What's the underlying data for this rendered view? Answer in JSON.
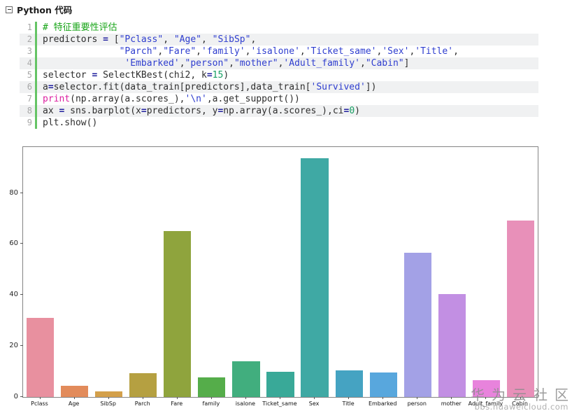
{
  "header": {
    "title": "Python 代码"
  },
  "code": {
    "lines": [
      {
        "no": "1",
        "tokens": [
          {
            "c": "comment",
            "t": "# 特征重要性评估"
          }
        ]
      },
      {
        "no": "2",
        "tokens": [
          {
            "c": "plain",
            "t": "predictors "
          },
          {
            "c": "op",
            "t": "="
          },
          {
            "c": "plain",
            "t": " ["
          },
          {
            "c": "str",
            "t": "\"Pclass\""
          },
          {
            "c": "plain",
            "t": ", "
          },
          {
            "c": "str",
            "t": "\"Age\""
          },
          {
            "c": "plain",
            "t": ", "
          },
          {
            "c": "str",
            "t": "\"SibSp\""
          },
          {
            "c": "plain",
            "t": ","
          }
        ]
      },
      {
        "no": "3",
        "tokens": [
          {
            "c": "plain",
            "t": "              "
          },
          {
            "c": "str",
            "t": "\"Parch\""
          },
          {
            "c": "plain",
            "t": ","
          },
          {
            "c": "str",
            "t": "\"Fare\""
          },
          {
            "c": "plain",
            "t": ","
          },
          {
            "c": "str",
            "t": "'family'"
          },
          {
            "c": "plain",
            "t": ","
          },
          {
            "c": "str",
            "t": "'isalone'"
          },
          {
            "c": "plain",
            "t": ","
          },
          {
            "c": "str",
            "t": "'Ticket_same'"
          },
          {
            "c": "plain",
            "t": ","
          },
          {
            "c": "str",
            "t": "'Sex'"
          },
          {
            "c": "plain",
            "t": ","
          },
          {
            "c": "str",
            "t": "'Title'"
          },
          {
            "c": "plain",
            "t": ","
          }
        ]
      },
      {
        "no": "4",
        "tokens": [
          {
            "c": "plain",
            "t": "               "
          },
          {
            "c": "str",
            "t": "'Embarked'"
          },
          {
            "c": "plain",
            "t": ","
          },
          {
            "c": "str",
            "t": "\"person\""
          },
          {
            "c": "plain",
            "t": ","
          },
          {
            "c": "str",
            "t": "\"mother\""
          },
          {
            "c": "plain",
            "t": ","
          },
          {
            "c": "str",
            "t": "'Adult_family'"
          },
          {
            "c": "plain",
            "t": ","
          },
          {
            "c": "str",
            "t": "\"Cabin\""
          },
          {
            "c": "plain",
            "t": "]"
          }
        ]
      },
      {
        "no": "5",
        "tokens": [
          {
            "c": "plain",
            "t": "selector "
          },
          {
            "c": "op",
            "t": "="
          },
          {
            "c": "plain",
            "t": " SelectKBest(chi2, k"
          },
          {
            "c": "op",
            "t": "="
          },
          {
            "c": "num",
            "t": "15"
          },
          {
            "c": "plain",
            "t": ")"
          }
        ]
      },
      {
        "no": "6",
        "tokens": [
          {
            "c": "plain",
            "t": "a"
          },
          {
            "c": "op",
            "t": "="
          },
          {
            "c": "plain",
            "t": "selector.fit(data_train[predictors],data_train["
          },
          {
            "c": "str",
            "t": "'Survived'"
          },
          {
            "c": "plain",
            "t": "])"
          }
        ]
      },
      {
        "no": "7",
        "tokens": [
          {
            "c": "kw",
            "t": "print"
          },
          {
            "c": "plain",
            "t": "(np.array(a.scores_),"
          },
          {
            "c": "str",
            "t": "'\\n'"
          },
          {
            "c": "plain",
            "t": ",a.get_support())"
          }
        ]
      },
      {
        "no": "8",
        "tokens": [
          {
            "c": "plain",
            "t": "ax "
          },
          {
            "c": "op",
            "t": "="
          },
          {
            "c": "plain",
            "t": " sns.barplot(x"
          },
          {
            "c": "op",
            "t": "="
          },
          {
            "c": "plain",
            "t": "predictors, y"
          },
          {
            "c": "op",
            "t": "="
          },
          {
            "c": "plain",
            "t": "np.array(a.scores_),ci"
          },
          {
            "c": "op",
            "t": "="
          },
          {
            "c": "num",
            "t": "0"
          },
          {
            "c": "plain",
            "t": ")"
          }
        ]
      },
      {
        "no": "9",
        "tokens": [
          {
            "c": "plain",
            "t": "plt.show()"
          }
        ]
      }
    ]
  },
  "chart_data": {
    "type": "bar",
    "title": "",
    "xlabel": "",
    "ylabel": "",
    "categories": [
      "Pclass",
      "Age",
      "SibSp",
      "Parch",
      "Fare",
      "family",
      "isalone",
      "Ticket_same",
      "Sex",
      "Title",
      "Embarked",
      "person",
      "mother",
      "Adult_family",
      "Cabin"
    ],
    "values": [
      31,
      4.5,
      2.2,
      9.3,
      65,
      7.7,
      14.1,
      9.8,
      93.5,
      10.4,
      9.5,
      56.5,
      40.3,
      6.7,
      69.3
    ],
    "bar_colors": [
      "#e8909f",
      "#e28b5b",
      "#d3a04b",
      "#b5a041",
      "#8fa43d",
      "#55ad4a",
      "#41ae7e",
      "#39a998",
      "#3fa9a4",
      "#45a3c2",
      "#58a7dd",
      "#a3a1e6",
      "#c28fe3",
      "#e883dc",
      "#e890b9"
    ],
    "yticks": [
      0,
      20,
      40,
      60,
      80
    ],
    "ylim": [
      0,
      98
    ],
    "grid": false,
    "legend": null,
    "bar_rel_width": 0.8
  },
  "watermark": {
    "line1": "华为云社区",
    "line2": "bbs.huaweicloud.com"
  }
}
